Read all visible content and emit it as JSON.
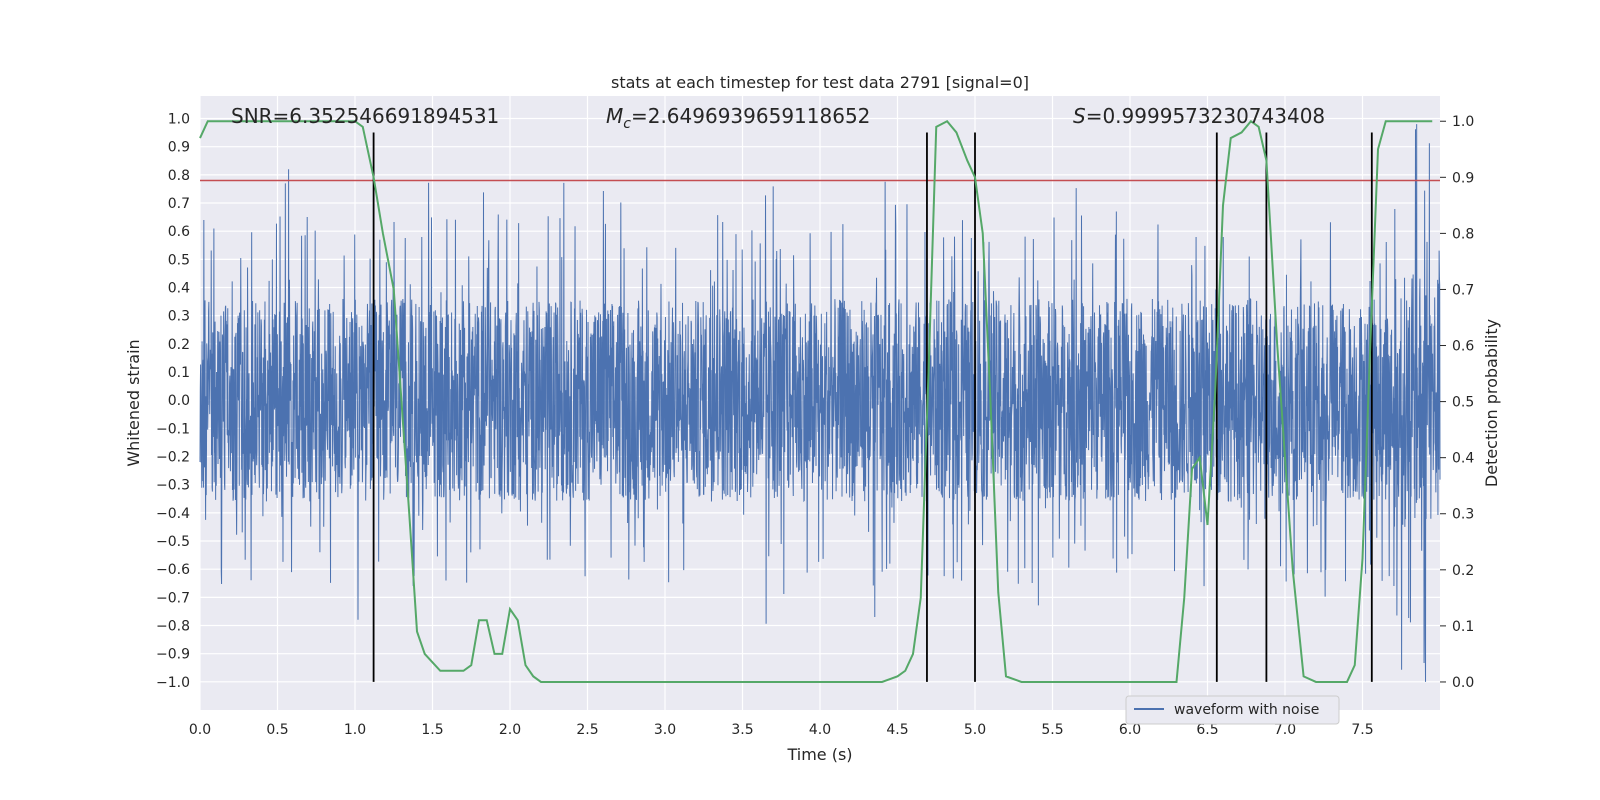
{
  "chart_data": {
    "type": "line",
    "title": "stats at each timestep for test data 2791 [signal=0]",
    "xlabel": "Time (s)",
    "ylabel": "Whitened strain",
    "y2label": "Detection probability",
    "xlim": [
      0,
      8
    ],
    "ylim": [
      -1.1,
      1.08
    ],
    "y2lim": [
      -0.05,
      1.045
    ],
    "xticks": [
      0.0,
      0.5,
      1.0,
      1.5,
      2.0,
      2.5,
      3.0,
      3.5,
      4.0,
      4.5,
      5.0,
      5.5,
      6.0,
      6.5,
      7.0,
      7.5
    ],
    "yticks": [
      -1.0,
      -0.9,
      -0.8,
      -0.7,
      -0.6,
      -0.5,
      -0.4,
      -0.3,
      -0.2,
      -0.1,
      0.0,
      0.1,
      0.2,
      0.3,
      0.4,
      0.5,
      0.6,
      0.7,
      0.8,
      0.9,
      1.0
    ],
    "y2ticks": [
      0.0,
      0.1,
      0.2,
      0.3,
      0.4,
      0.5,
      0.6,
      0.7,
      0.8,
      0.9,
      1.0
    ],
    "annotations": {
      "snr": "SNR=6.352546691894531",
      "mc_symbol": "M",
      "mc_sub": "c",
      "mc_value": "=2.6496939659118652",
      "s_symbol": "S",
      "s_value": "=0.9999573230743408"
    },
    "threshold": 0.78,
    "event_lines_x": [
      1.12,
      4.69,
      5.0,
      6.56,
      6.88,
      7.56
    ],
    "series": [
      {
        "name": "waveform with noise",
        "color": "#4c72b0",
        "axis": "left",
        "description": "noisy whitened strain, envelope ~±0.4 with spikes",
        "duration_s": 8.0,
        "approx_peak_max": 0.98,
        "approx_peak_min": -1.0
      },
      {
        "name": "detection probability",
        "color": "#55a868",
        "axis": "right",
        "x": [
          0.0,
          0.05,
          0.2,
          0.5,
          0.9,
          1.0,
          1.05,
          1.12,
          1.18,
          1.25,
          1.3,
          1.35,
          1.4,
          1.45,
          1.55,
          1.6,
          1.7,
          1.75,
          1.8,
          1.85,
          1.9,
          1.95,
          2.0,
          2.05,
          2.1,
          2.15,
          2.2,
          2.3,
          2.5,
          3.0,
          3.5,
          4.0,
          4.4,
          4.5,
          4.55,
          4.6,
          4.65,
          4.7,
          4.75,
          4.82,
          4.88,
          4.95,
          5.0,
          5.05,
          5.1,
          5.15,
          5.2,
          5.3,
          5.5,
          5.8,
          6.0,
          6.2,
          6.3,
          6.35,
          6.4,
          6.45,
          6.5,
          6.55,
          6.6,
          6.65,
          6.72,
          6.78,
          6.83,
          6.88,
          6.95,
          7.05,
          7.12,
          7.2,
          7.3,
          7.4,
          7.45,
          7.5,
          7.55,
          7.6,
          7.65,
          7.7,
          7.8,
          7.95
        ],
        "values": [
          0.97,
          1.0,
          1.0,
          1.0,
          1.0,
          1.0,
          0.99,
          0.9,
          0.8,
          0.7,
          0.5,
          0.3,
          0.09,
          0.05,
          0.02,
          0.02,
          0.02,
          0.03,
          0.11,
          0.11,
          0.05,
          0.05,
          0.13,
          0.11,
          0.03,
          0.01,
          0.0,
          0.0,
          0.0,
          0.0,
          0.0,
          0.0,
          0.0,
          0.01,
          0.02,
          0.05,
          0.15,
          0.55,
          0.99,
          1.0,
          0.98,
          0.93,
          0.9,
          0.8,
          0.5,
          0.16,
          0.01,
          0.0,
          0.0,
          0.0,
          0.0,
          0.0,
          0.0,
          0.15,
          0.38,
          0.4,
          0.28,
          0.52,
          0.85,
          0.97,
          0.98,
          1.0,
          0.99,
          0.93,
          0.6,
          0.2,
          0.01,
          0.0,
          0.0,
          0.0,
          0.03,
          0.22,
          0.6,
          0.95,
          1.0,
          1.0,
          1.0,
          1.0
        ]
      }
    ],
    "threshold_color": "#c44e52",
    "event_line_color": "#000000",
    "legend": {
      "location": "lower-right",
      "entries": [
        "waveform with noise"
      ]
    },
    "grid": true,
    "background": "#eaeaf2"
  }
}
